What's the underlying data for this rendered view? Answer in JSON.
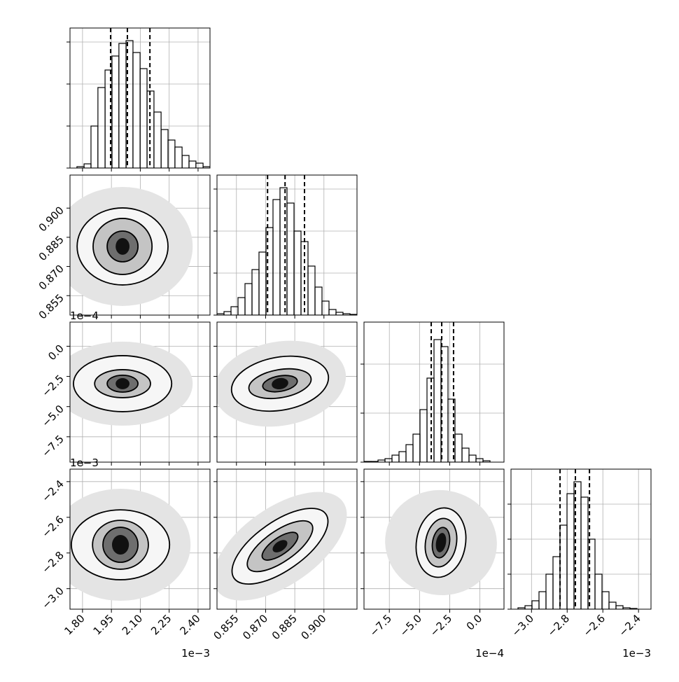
{
  "chart_data": {
    "type": "corner",
    "grid": true,
    "line_color": "#000000",
    "grid_color": "#b0b0b0",
    "level_fills": [
      "#e4e4e4",
      "#f6f6f6",
      "#c4c4c4",
      "#6e6e6e",
      "#111111"
    ],
    "level_stroke": [
      false,
      true,
      true,
      true,
      false
    ],
    "parameters": [
      {
        "lim": [
          1.735,
          2.462
        ],
        "ticks": [
          {
            "value": 1.8,
            "label": "1.80"
          },
          1.95,
          {
            "value": 2.1,
            "label": "2.10"
          },
          2.25,
          {
            "value": 2.4,
            "label": "2.40"
          }
        ],
        "offset_label": "1e−3",
        "bins": [
          1.735,
          1.771,
          1.808,
          1.844,
          1.88,
          1.917,
          1.953,
          1.989,
          2.026,
          2.062,
          2.099,
          2.135,
          2.171,
          2.208,
          2.244,
          2.28,
          2.317,
          2.353,
          2.389,
          2.426,
          2.462
        ],
        "counts": [
          0,
          2,
          6,
          60,
          115,
          140,
          160,
          178,
          182,
          165,
          142,
          110,
          80,
          55,
          40,
          30,
          18,
          10,
          7,
          2
        ],
        "quantiles": [
          1.946,
          2.033,
          2.15
        ],
        "hist_ylim": [
          0,
          200
        ],
        "hist_yticks": [
          0,
          60,
          120,
          180
        ]
      },
      {
        "lim": [
          0.845,
          0.917
        ],
        "ticks": [
          0.855,
          {
            "value": 0.87,
            "label": "0.870"
          },
          0.885,
          {
            "value": 0.9,
            "label": "0.900"
          }
        ],
        "bins": [
          0.845,
          0.8486,
          0.8522,
          0.8558,
          0.8594,
          0.863,
          0.8666,
          0.8702,
          0.8738,
          0.8774,
          0.881,
          0.8846,
          0.8882,
          0.8918,
          0.8954,
          0.899,
          0.9026,
          0.9062,
          0.9098,
          0.9134,
          0.917
        ],
        "counts": [
          2,
          5,
          12,
          25,
          45,
          65,
          90,
          125,
          165,
          182,
          160,
          120,
          105,
          70,
          40,
          20,
          8,
          4,
          2,
          1
        ],
        "quantiles": [
          0.871,
          0.88,
          0.89
        ],
        "hist_ylim": [
          0,
          200
        ],
        "hist_yticks": [
          0,
          60,
          120,
          180
        ]
      },
      {
        "lim": [
          -9.6,
          2.0
        ],
        "ticks": [
          {
            "value": -7.5,
            "label": "−7.5"
          },
          {
            "value": -5,
            "label": "−5.0"
          },
          {
            "value": -2.5,
            "label": "−2.5"
          },
          {
            "value": 0,
            "label": "0.0"
          }
        ],
        "offset_label": "1e−4",
        "bins": [
          -9.6,
          -9.02,
          -8.44,
          -7.86,
          -7.28,
          -6.7,
          -6.12,
          -5.54,
          -4.96,
          -4.38,
          -3.8,
          -3.22,
          -2.64,
          -2.06,
          -1.48,
          -0.9,
          -0.32,
          0.26,
          0.84,
          1.42,
          2.0
        ],
        "counts": [
          1,
          1,
          3,
          5,
          10,
          15,
          25,
          40,
          75,
          120,
          175,
          165,
          90,
          40,
          20,
          10,
          5,
          2,
          0,
          0
        ],
        "quantiles": [
          -4.03,
          -3.16,
          -2.18
        ],
        "hist_ylim": [
          0,
          200
        ],
        "hist_yticks": [
          0,
          70,
          140
        ]
      },
      {
        "lim": [
          -3.115,
          -2.33
        ],
        "ticks": [
          {
            "value": -3.0,
            "label": "−3.0"
          },
          {
            "value": -2.8,
            "label": "−2.8"
          },
          {
            "value": -2.6,
            "label": "−2.6"
          },
          {
            "value": -2.4,
            "label": "−2.4"
          }
        ],
        "offset_label": "1e−3",
        "bins": [
          -3.115,
          -3.0758,
          -3.0365,
          -2.9973,
          -2.958,
          -2.9188,
          -2.8795,
          -2.8403,
          -2.801,
          -2.7618,
          -2.7225,
          -2.6833,
          -2.644,
          -2.6048,
          -2.5655,
          -2.5263,
          -2.487,
          -2.4478,
          -2.4085,
          -2.3693,
          -2.33
        ],
        "counts": [
          0,
          2,
          5,
          12,
          25,
          50,
          75,
          120,
          165,
          182,
          160,
          100,
          50,
          25,
          10,
          5,
          2,
          1,
          0,
          0
        ],
        "quantiles": [
          -2.84,
          -2.754,
          -2.675
        ],
        "hist_ylim": [
          0,
          200
        ],
        "hist_yticks": [
          0,
          50,
          100,
          150
        ]
      }
    ],
    "contours": [
      [
        [
          {
            "x": 2.008,
            "y": 0.8803,
            "dx": 0.364,
            "dy": 0.0306
          },
          {
            "x": 2.008,
            "y": 0.8803,
            "dx": 0.236,
            "dy": 0.0198
          },
          {
            "x": 2.008,
            "y": 0.8803,
            "dx": 0.153,
            "dy": 0.0144
          },
          {
            "x": 2.008,
            "y": 0.8803,
            "dx": 0.08,
            "dy": 0.0079
          },
          {
            "x": 2.008,
            "y": 0.8803,
            "dx": 0.036,
            "dy": 0.0043
          }
        ]
      ],
      [
        [
          {
            "x": 2.008,
            "y": -3.1,
            "dx": 0.364,
            "dy": 3.48
          },
          {
            "x": 2.008,
            "y": -3.1,
            "dx": 0.255,
            "dy": 2.32
          },
          {
            "x": 2.008,
            "y": -3.1,
            "dx": 0.145,
            "dy": 1.16
          },
          {
            "x": 2.008,
            "y": -3.1,
            "dx": 0.08,
            "dy": 0.7
          },
          {
            "x": 2.008,
            "y": -3.1,
            "dx": 0.036,
            "dy": 0.46
          }
        ],
        [
          {
            "x": 0.8774,
            "y": -3.1,
            "dx": 0.0342,
            "dy": 3.48,
            "tilt": -10
          },
          {
            "x": 0.8774,
            "y": -3.1,
            "dx": 0.0252,
            "dy": 2.2,
            "tilt": -10
          },
          {
            "x": 0.8774,
            "y": -3.1,
            "dx": 0.0162,
            "dy": 1.16,
            "tilt": -10
          },
          {
            "x": 0.8774,
            "y": -3.1,
            "dx": 0.009,
            "dy": 0.64,
            "tilt": -10
          },
          {
            "x": 0.8774,
            "y": -3.1,
            "dx": 0.0043,
            "dy": 0.46,
            "tilt": -10
          }
        ]
      ],
      [
        [
          {
            "x": 1.997,
            "y": -2.754,
            "dx": 0.364,
            "dy": 0.314
          },
          {
            "x": 1.997,
            "y": -2.754,
            "dx": 0.255,
            "dy": 0.196
          },
          {
            "x": 1.997,
            "y": -2.754,
            "dx": 0.145,
            "dy": 0.137
          },
          {
            "x": 1.997,
            "y": -2.754,
            "dx": 0.091,
            "dy": 0.098
          },
          {
            "x": 1.997,
            "y": -2.754,
            "dx": 0.044,
            "dy": 0.055
          }
        ],
        [
          {
            "x": 0.8774,
            "y": -2.762,
            "dx": 0.0396,
            "dy": 0.216,
            "tilt": -35
          },
          {
            "x": 0.8774,
            "y": -2.762,
            "dx": 0.0288,
            "dy": 0.137,
            "tilt": -35
          },
          {
            "x": 0.8774,
            "y": -2.762,
            "dx": 0.0198,
            "dy": 0.086,
            "tilt": -35
          },
          {
            "x": 0.8774,
            "y": -2.762,
            "dx": 0.0108,
            "dy": 0.047,
            "tilt": -35
          },
          {
            "x": 0.8774,
            "y": -2.762,
            "dx": 0.0043,
            "dy": 0.027,
            "tilt": -35
          }
        ],
        [
          {
            "x": -3.22,
            "y": -2.742,
            "dx": 4.64,
            "dy": 0.294,
            "tilt": 10
          },
          {
            "x": -3.22,
            "y": -2.742,
            "dx": 2.03,
            "dy": 0.196,
            "tilt": 10
          },
          {
            "x": -3.22,
            "y": -2.742,
            "dx": 1.28,
            "dy": 0.137,
            "tilt": 10
          },
          {
            "x": -3.22,
            "y": -2.742,
            "dx": 0.7,
            "dy": 0.086,
            "tilt": 10
          },
          {
            "x": -3.22,
            "y": -2.742,
            "dx": 0.41,
            "dy": 0.055,
            "tilt": 10
          }
        ]
      ]
    ]
  }
}
